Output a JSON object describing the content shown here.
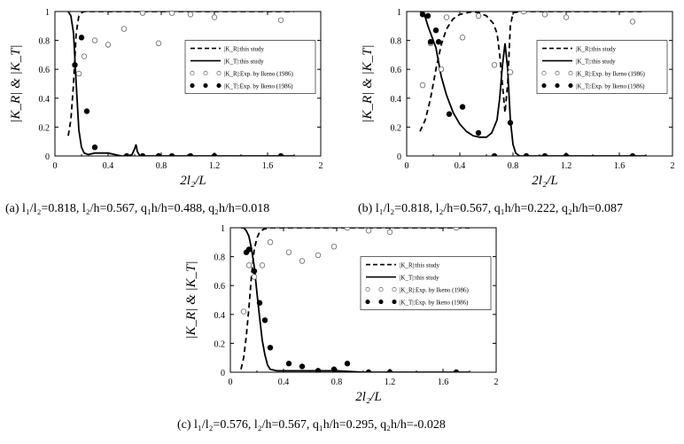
{
  "chart_data": [
    {
      "id": "a",
      "type": "line",
      "caption": "(a)  l₁/l₂=0.818,  l₂/h=0.567,  q₁h/h=0.488,  q₂h/h=0.018",
      "xlabel": "2l₂/L",
      "ylabel": "|K_R| & |K_T|",
      "xlim": [
        0,
        2
      ],
      "ylim": [
        0,
        1
      ],
      "xticks": [
        "0",
        "0.4",
        "0.8",
        "1.2",
        "1.6",
        "2"
      ],
      "yticks": [
        "0",
        "0.2",
        "0.4",
        "0.6",
        "0.8",
        "1"
      ],
      "legend_position": "right-middle",
      "grid": false,
      "series": [
        {
          "name": "|K_R|:this study",
          "style": "dashed",
          "x": [
            0.1,
            0.12,
            0.14,
            0.16,
            0.18,
            0.2,
            0.22,
            0.25,
            0.3,
            0.4,
            0.6,
            0.8,
            1.2,
            1.6,
            1.8
          ],
          "y": [
            0.14,
            0.25,
            0.5,
            0.85,
            0.97,
            0.99,
            1.0,
            1.0,
            1.0,
            1.0,
            1.0,
            1.0,
            1.0,
            1.0,
            1.0
          ]
        },
        {
          "name": "|K_T|:this study",
          "style": "solid",
          "x": [
            0.1,
            0.12,
            0.14,
            0.16,
            0.18,
            0.2,
            0.22,
            0.25,
            0.3,
            0.35,
            0.4,
            0.45,
            0.5,
            0.55,
            0.58,
            0.6,
            0.61,
            0.62,
            0.64,
            0.7,
            0.8,
            1.0,
            1.4,
            1.8
          ],
          "y": [
            1.0,
            0.97,
            0.85,
            0.5,
            0.18,
            0.06,
            0.02,
            0.01,
            0.02,
            0.02,
            0.02,
            0.01,
            0.0,
            0.0,
            0.01,
            0.05,
            0.08,
            0.03,
            0.0,
            0.0,
            0.0,
            0.0,
            0.0,
            0.0
          ]
        },
        {
          "name": "|K_R|:Exp. by Ikeno (1986)",
          "style": "open-circle",
          "x": [
            0.18,
            0.22,
            0.3,
            0.4,
            0.52,
            0.66,
            0.78,
            0.88,
            1.02,
            1.2,
            1.7
          ],
          "y": [
            0.57,
            0.69,
            0.8,
            0.77,
            0.88,
            0.99,
            0.78,
            0.99,
            0.98,
            0.96,
            0.94
          ]
        },
        {
          "name": "|K_T|:Exp. by Ikeno (1986)",
          "style": "filled-circle",
          "x": [
            0.15,
            0.2,
            0.24,
            0.3,
            0.54,
            0.66,
            0.78,
            0.88,
            1.02,
            1.2,
            1.7
          ],
          "y": [
            0.63,
            0.82,
            0.31,
            0.06,
            0.0,
            0.0,
            0.0,
            0.0,
            0.0,
            0.0,
            0.0
          ]
        }
      ]
    },
    {
      "id": "b",
      "type": "line",
      "caption": "(b)  l₁/l₂=0.818,  l₂/h=0.567,  q₁h/h=0.222,  q₂h/h=0.087",
      "xlabel": "2l₂/L",
      "ylabel": "|K_R| & |K_T|",
      "xlim": [
        0,
        2
      ],
      "ylim": [
        0,
        1
      ],
      "xticks": [
        "0",
        "0.4",
        "0.8",
        "1.2",
        "1.6",
        "2"
      ],
      "yticks": [
        "0",
        "0.2",
        "0.4",
        "0.6",
        "0.8",
        "1"
      ],
      "legend_position": "right-middle",
      "grid": false,
      "series": [
        {
          "name": "|K_R|:this study",
          "style": "dashed",
          "x": [
            0.1,
            0.14,
            0.18,
            0.22,
            0.26,
            0.3,
            0.35,
            0.4,
            0.45,
            0.5,
            0.55,
            0.6,
            0.65,
            0.68,
            0.7,
            0.72,
            0.74,
            0.76,
            0.78,
            0.8,
            0.85,
            1.0,
            1.4,
            1.8
          ],
          "y": [
            0.17,
            0.25,
            0.4,
            0.6,
            0.77,
            0.88,
            0.95,
            0.98,
            0.99,
            1.0,
            0.99,
            0.97,
            0.92,
            0.85,
            0.7,
            0.5,
            0.3,
            0.5,
            0.9,
            0.99,
            1.0,
            1.0,
            1.0,
            1.0
          ]
        },
        {
          "name": "|K_T|:this study",
          "style": "solid",
          "x": [
            0.1,
            0.12,
            0.14,
            0.16,
            0.18,
            0.22,
            0.26,
            0.3,
            0.35,
            0.4,
            0.45,
            0.5,
            0.55,
            0.6,
            0.64,
            0.68,
            0.7,
            0.72,
            0.74,
            0.76,
            0.78,
            0.8,
            0.82,
            0.85,
            0.9,
            1.0,
            1.4,
            1.8
          ],
          "y": [
            1.0,
            0.99,
            0.96,
            0.9,
            0.85,
            0.75,
            0.55,
            0.42,
            0.3,
            0.22,
            0.17,
            0.14,
            0.13,
            0.13,
            0.16,
            0.25,
            0.4,
            0.62,
            0.78,
            0.6,
            0.25,
            0.08,
            0.02,
            0.0,
            0.0,
            0.0,
            0.0,
            0.0
          ]
        },
        {
          "name": "|K_R|:Exp. by Ikeno (1986)",
          "style": "open-circle",
          "x": [
            0.12,
            0.18,
            0.26,
            0.3,
            0.42,
            0.54,
            0.66,
            0.78,
            0.88,
            1.04,
            1.2,
            1.7
          ],
          "y": [
            0.49,
            0.78,
            0.6,
            0.96,
            0.82,
            0.97,
            0.63,
            0.58,
            1.0,
            0.98,
            0.96,
            0.93
          ]
        },
        {
          "name": "|K_T|:Exp. by Ikeno (1986)",
          "style": "filled-circle",
          "x": [
            0.12,
            0.16,
            0.18,
            0.22,
            0.24,
            0.32,
            0.42,
            0.54,
            0.66,
            0.78,
            0.9,
            1.04,
            1.2,
            1.7
          ],
          "y": [
            0.98,
            0.97,
            0.79,
            0.87,
            0.79,
            0.29,
            0.34,
            0.16,
            0.0,
            0.23,
            0.0,
            0.0,
            0.0,
            0.0
          ]
        }
      ]
    },
    {
      "id": "c",
      "type": "line",
      "caption": "(c)  l₁/l₂=0.576,  l₂/h=0.567,  q₁h/h=0.295,  q₂h/h=-0.028",
      "xlabel": "2l₂/L",
      "ylabel": "|K_R| & |K_T|",
      "xlim": [
        0,
        2
      ],
      "ylim": [
        0,
        1
      ],
      "xticks": [
        "0",
        "0.4",
        "0.8",
        "1.2",
        "1.6",
        "2"
      ],
      "yticks": [
        "0",
        "0.2",
        "0.4",
        "0.6",
        "0.8",
        "1"
      ],
      "legend_position": "right-middle",
      "grid": false,
      "series": [
        {
          "name": "|K_R|:this study",
          "style": "dashed",
          "x": [
            0.08,
            0.1,
            0.12,
            0.14,
            0.16,
            0.18,
            0.2,
            0.22,
            0.25,
            0.3,
            0.4,
            0.6,
            1.0,
            1.4,
            1.8
          ],
          "y": [
            0.02,
            0.1,
            0.25,
            0.45,
            0.68,
            0.85,
            0.93,
            0.97,
            0.99,
            1.0,
            1.0,
            1.0,
            1.0,
            1.0,
            1.0
          ]
        },
        {
          "name": "|K_T|:this study",
          "style": "solid",
          "x": [
            0.08,
            0.1,
            0.12,
            0.14,
            0.16,
            0.18,
            0.2,
            0.22,
            0.24,
            0.26,
            0.28,
            0.3,
            0.35,
            0.4,
            0.5,
            0.6,
            0.8,
            1.0,
            1.4,
            1.8
          ],
          "y": [
            1.0,
            1.0,
            0.98,
            0.94,
            0.85,
            0.73,
            0.55,
            0.38,
            0.22,
            0.12,
            0.05,
            0.02,
            0.01,
            0.01,
            0.01,
            0.01,
            0.01,
            0.0,
            0.0,
            0.0
          ]
        },
        {
          "name": "|K_R|:Exp. by Ikeno (1986)",
          "style": "open-circle",
          "x": [
            0.1,
            0.14,
            0.18,
            0.24,
            0.3,
            0.44,
            0.54,
            0.66,
            0.78,
            0.88,
            1.04,
            1.2,
            1.7
          ],
          "y": [
            0.42,
            0.74,
            0.66,
            0.74,
            0.9,
            0.83,
            0.77,
            0.81,
            0.87,
            1.0,
            0.98,
            0.97,
            1.0
          ]
        },
        {
          "name": "|K_T|:Exp. by Ikeno (1986)",
          "style": "filled-circle",
          "x": [
            0.12,
            0.14,
            0.18,
            0.22,
            0.26,
            0.3,
            0.44,
            0.54,
            0.66,
            0.78,
            0.88,
            1.04,
            1.2,
            1.7
          ],
          "y": [
            0.83,
            0.85,
            0.7,
            0.48,
            0.36,
            0.17,
            0.06,
            0.04,
            0.01,
            0.02,
            0.06,
            0.0,
            0.0,
            0.0
          ]
        }
      ]
    }
  ]
}
